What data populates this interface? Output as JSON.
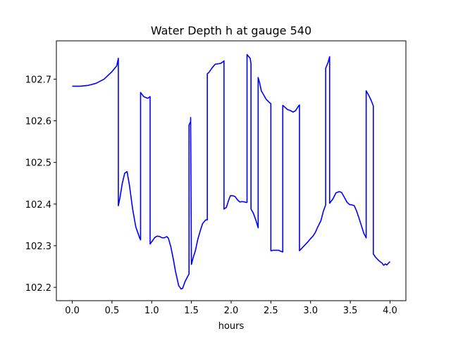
{
  "chart_data": {
    "type": "line",
    "title": "Water Depth h at gauge 540",
    "xlabel": "hours",
    "ylabel": "",
    "xlim": [
      -0.2,
      4.2
    ],
    "ylim": [
      102.168,
      102.792
    ],
    "grid": false,
    "x_ticks": [
      0.0,
      0.5,
      1.0,
      1.5,
      2.0,
      2.5,
      3.0,
      3.5,
      4.0
    ],
    "x_tick_labels": [
      "0.0",
      "0.5",
      "1.0",
      "1.5",
      "2.0",
      "2.5",
      "3.0",
      "3.5",
      "4.0"
    ],
    "y_ticks": [
      102.2,
      102.3,
      102.4,
      102.5,
      102.6,
      102.7
    ],
    "y_tick_labels": [
      "102.2",
      "102.3",
      "102.4",
      "102.5",
      "102.6",
      "102.7"
    ],
    "line_color": "#0000ff",
    "series": [
      {
        "x": [
          0.0,
          0.1,
          0.2,
          0.3,
          0.4,
          0.5,
          0.56,
          0.58,
          0.58,
          0.6,
          0.63,
          0.66,
          0.69,
          0.72,
          0.76,
          0.8,
          0.85,
          0.86,
          0.86,
          0.9,
          0.95,
          0.98,
          0.98,
          1.01,
          1.04,
          1.07,
          1.1,
          1.13,
          1.16,
          1.19,
          1.21,
          1.24,
          1.27,
          1.3,
          1.34,
          1.37,
          1.39,
          1.42,
          1.45,
          1.47,
          1.47,
          1.49,
          1.49,
          1.5,
          1.52,
          1.55,
          1.58,
          1.61,
          1.64,
          1.68,
          1.7,
          1.7,
          1.72,
          1.76,
          1.8,
          1.84,
          1.87,
          1.9,
          1.91,
          1.91,
          1.94,
          1.97,
          1.99,
          2.02,
          2.05,
          2.08,
          2.11,
          2.14,
          2.17,
          2.19,
          2.2,
          2.2,
          2.24,
          2.25,
          2.25,
          2.28,
          2.31,
          2.34,
          2.34,
          2.36,
          2.38,
          2.41,
          2.44,
          2.47,
          2.5,
          2.5,
          2.53,
          2.56,
          2.6,
          2.62,
          2.65,
          2.65,
          2.68,
          2.71,
          2.74,
          2.78,
          2.81,
          2.84,
          2.86,
          2.86,
          2.9,
          2.93,
          2.96,
          3.0,
          3.03,
          3.06,
          3.09,
          3.13,
          3.16,
          3.19,
          3.19,
          3.22,
          3.24,
          3.24,
          3.28,
          3.32,
          3.36,
          3.39,
          3.42,
          3.46,
          3.49,
          3.52,
          3.55,
          3.58,
          3.61,
          3.64,
          3.67,
          3.7,
          3.7,
          3.73,
          3.76,
          3.79,
          3.79,
          3.82,
          3.86,
          3.9,
          3.92,
          3.94,
          3.96,
          3.98,
          4.0
        ],
        "y": [
          102.683,
          102.683,
          102.685,
          102.69,
          102.7,
          102.718,
          102.732,
          102.75,
          102.396,
          102.415,
          102.45,
          102.474,
          102.478,
          102.445,
          102.388,
          102.345,
          102.318,
          102.314,
          102.668,
          102.658,
          102.654,
          102.658,
          102.304,
          102.312,
          102.32,
          102.323,
          102.322,
          102.319,
          102.319,
          102.322,
          102.318,
          102.298,
          102.27,
          102.238,
          102.204,
          102.196,
          102.198,
          102.214,
          102.225,
          102.232,
          102.59,
          102.598,
          102.608,
          102.255,
          102.27,
          102.288,
          102.315,
          102.335,
          102.353,
          102.362,
          102.362,
          102.713,
          102.716,
          102.727,
          102.736,
          102.737,
          102.738,
          102.742,
          102.744,
          102.388,
          102.392,
          102.41,
          102.42,
          102.42,
          102.418,
          102.41,
          102.405,
          102.406,
          102.405,
          102.404,
          102.404,
          102.759,
          102.75,
          102.737,
          102.388,
          102.378,
          102.362,
          102.343,
          102.704,
          102.69,
          102.672,
          102.662,
          102.652,
          102.646,
          102.641,
          102.288,
          102.289,
          102.289,
          102.289,
          102.287,
          102.285,
          102.637,
          102.632,
          102.627,
          102.625,
          102.621,
          102.624,
          102.633,
          102.638,
          102.288,
          102.296,
          102.302,
          102.308,
          102.317,
          102.323,
          102.332,
          102.345,
          102.36,
          102.382,
          102.398,
          102.726,
          102.74,
          102.754,
          102.402,
          102.412,
          102.427,
          102.43,
          102.428,
          102.418,
          102.404,
          102.399,
          102.398,
          102.396,
          102.383,
          102.366,
          102.348,
          102.33,
          102.319,
          102.672,
          102.662,
          102.65,
          102.636,
          102.28,
          102.272,
          102.264,
          102.258,
          102.253,
          102.256,
          102.254,
          102.258,
          102.262
        ]
      }
    ]
  }
}
